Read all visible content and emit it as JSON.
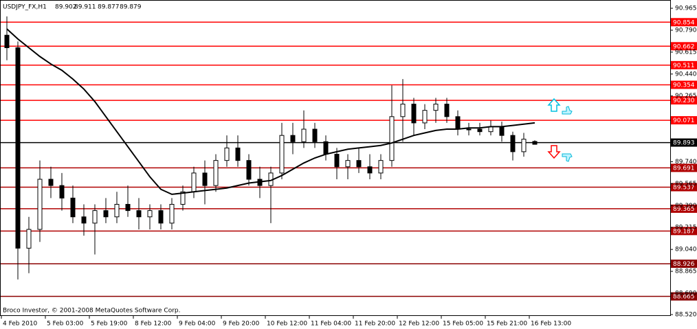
{
  "chart_data": {
    "type": "candlestick",
    "title": "USDJPY_FX,H1",
    "footer": "Broco Investor, © 2001-2008 MetaQuotes Software Corp.",
    "categories": [
      "4 Feb 2010",
      null,
      null,
      null,
      "5 Feb 03:00",
      null,
      null,
      null,
      "5 Feb 19:00",
      null,
      null,
      null,
      "8 Feb 12:00",
      null,
      null,
      null,
      "9 Feb 04:00",
      null,
      null,
      null,
      "9 Feb 20:00",
      null,
      null,
      null,
      "10 Feb 12:00",
      null,
      null,
      null,
      "11 Feb 04:00",
      null,
      null,
      null,
      "11 Feb 20:00",
      null,
      null,
      null,
      "12 Feb 12:00",
      null,
      null,
      null,
      "15 Feb 05:00",
      null,
      null,
      null,
      "15 Feb 21:00",
      null,
      null,
      null,
      "16 Feb 13:00"
    ],
    "open": [
      90.75,
      90.65,
      89.05,
      89.2,
      89.6,
      89.55,
      89.45,
      89.3,
      89.25,
      89.35,
      89.3,
      89.4,
      89.35,
      89.3,
      89.35,
      89.25,
      89.4,
      89.5,
      89.65,
      89.55,
      89.75,
      89.85,
      89.75,
      89.6,
      89.55,
      89.65,
      89.95,
      89.9,
      90.0,
      89.9,
      89.8,
      89.7,
      89.75,
      89.7,
      89.65,
      89.75,
      90.1,
      90.2,
      90.05,
      90.15,
      90.2,
      90.1,
      90.0,
      90.0,
      89.98,
      90.02,
      89.95,
      89.82,
      89.902
    ],
    "high": [
      90.9,
      90.7,
      89.3,
      89.75,
      89.7,
      89.65,
      89.55,
      89.4,
      89.4,
      89.45,
      89.5,
      89.55,
      89.45,
      89.4,
      89.4,
      89.45,
      89.55,
      89.7,
      89.75,
      89.8,
      89.95,
      89.95,
      89.8,
      89.7,
      89.7,
      90.05,
      90.05,
      90.15,
      90.05,
      89.95,
      89.85,
      89.8,
      89.85,
      89.8,
      89.8,
      90.35,
      90.4,
      90.25,
      90.2,
      90.25,
      90.25,
      90.15,
      90.05,
      90.05,
      90.07,
      90.06,
      89.98,
      89.97,
      89.911
    ],
    "low": [
      90.55,
      88.8,
      88.85,
      89.1,
      89.45,
      89.35,
      89.25,
      89.15,
      89.0,
      89.25,
      89.25,
      89.3,
      89.2,
      89.2,
      89.2,
      89.2,
      89.35,
      89.45,
      89.4,
      89.5,
      89.7,
      89.7,
      89.55,
      89.45,
      89.25,
      89.6,
      89.8,
      89.85,
      89.85,
      89.75,
      89.6,
      89.6,
      89.65,
      89.6,
      89.6,
      89.7,
      89.9,
      89.95,
      90.0,
      90.05,
      90.05,
      89.95,
      89.95,
      89.95,
      89.95,
      89.9,
      89.75,
      89.78,
      89.877
    ],
    "close": [
      90.65,
      89.05,
      89.2,
      89.6,
      89.55,
      89.45,
      89.3,
      89.25,
      89.35,
      89.3,
      89.4,
      89.35,
      89.3,
      89.35,
      89.25,
      89.4,
      89.5,
      89.65,
      89.55,
      89.75,
      89.85,
      89.75,
      89.6,
      89.55,
      89.65,
      89.95,
      89.9,
      90.0,
      89.9,
      89.8,
      89.7,
      89.75,
      89.7,
      89.65,
      89.75,
      90.1,
      90.2,
      90.05,
      90.15,
      90.2,
      90.1,
      90.0,
      90.0,
      89.98,
      90.02,
      89.95,
      89.82,
      89.92,
      89.879
    ],
    "moving_average": [
      90.8,
      90.72,
      90.65,
      90.58,
      90.52,
      90.47,
      90.4,
      90.32,
      90.22,
      90.1,
      89.98,
      89.86,
      89.74,
      89.62,
      89.52,
      89.48,
      89.49,
      89.5,
      89.51,
      89.52,
      89.53,
      89.55,
      89.57,
      89.58,
      89.59,
      89.63,
      89.68,
      89.73,
      89.77,
      89.8,
      89.82,
      89.84,
      89.85,
      89.86,
      89.87,
      89.89,
      89.92,
      89.95,
      89.97,
      89.99,
      90.0,
      90.0,
      90.01,
      90.01,
      90.02,
      90.02,
      90.03,
      90.04,
      90.05
    ],
    "levels": [
      {
        "value": 90.854,
        "color": "#ff0000"
      },
      {
        "value": 90.662,
        "color": "#ff0000"
      },
      {
        "value": 90.511,
        "color": "#ff0000"
      },
      {
        "value": 90.354,
        "color": "#ff0000"
      },
      {
        "value": 90.23,
        "label": "90.230",
        "color": "#ff0000"
      },
      {
        "value": 90.071,
        "color": "#ff0000"
      },
      {
        "value": 89.893,
        "color": "#000000"
      },
      {
        "value": 89.691,
        "color": "#b00000"
      },
      {
        "value": 89.537,
        "color": "#b00000"
      },
      {
        "value": 89.365,
        "color": "#b00000"
      },
      {
        "value": 89.187,
        "color": "#b00000"
      },
      {
        "value": 88.926,
        "color": "#8b0000"
      },
      {
        "value": 88.665,
        "color": "#8b0000"
      }
    ],
    "ylim": [
      88.509,
      91.031
    ],
    "yticks": [
      90.965,
      {
        "value": 90.79,
        "label": "90.790"
      },
      90.615,
      {
        "value": 90.44,
        "label": "90.440"
      },
      90.265,
      {
        "value": 89.74,
        "label": "89.740"
      },
      89.565,
      {
        "value": 89.39,
        "label": "89.390"
      },
      89.215,
      {
        "value": 89.04,
        "label": "89.040"
      },
      88.865,
      {
        "value": 88.69,
        "label": "88.690"
      },
      {
        "value": 88.52,
        "label": "88.520"
      }
    ]
  }
}
